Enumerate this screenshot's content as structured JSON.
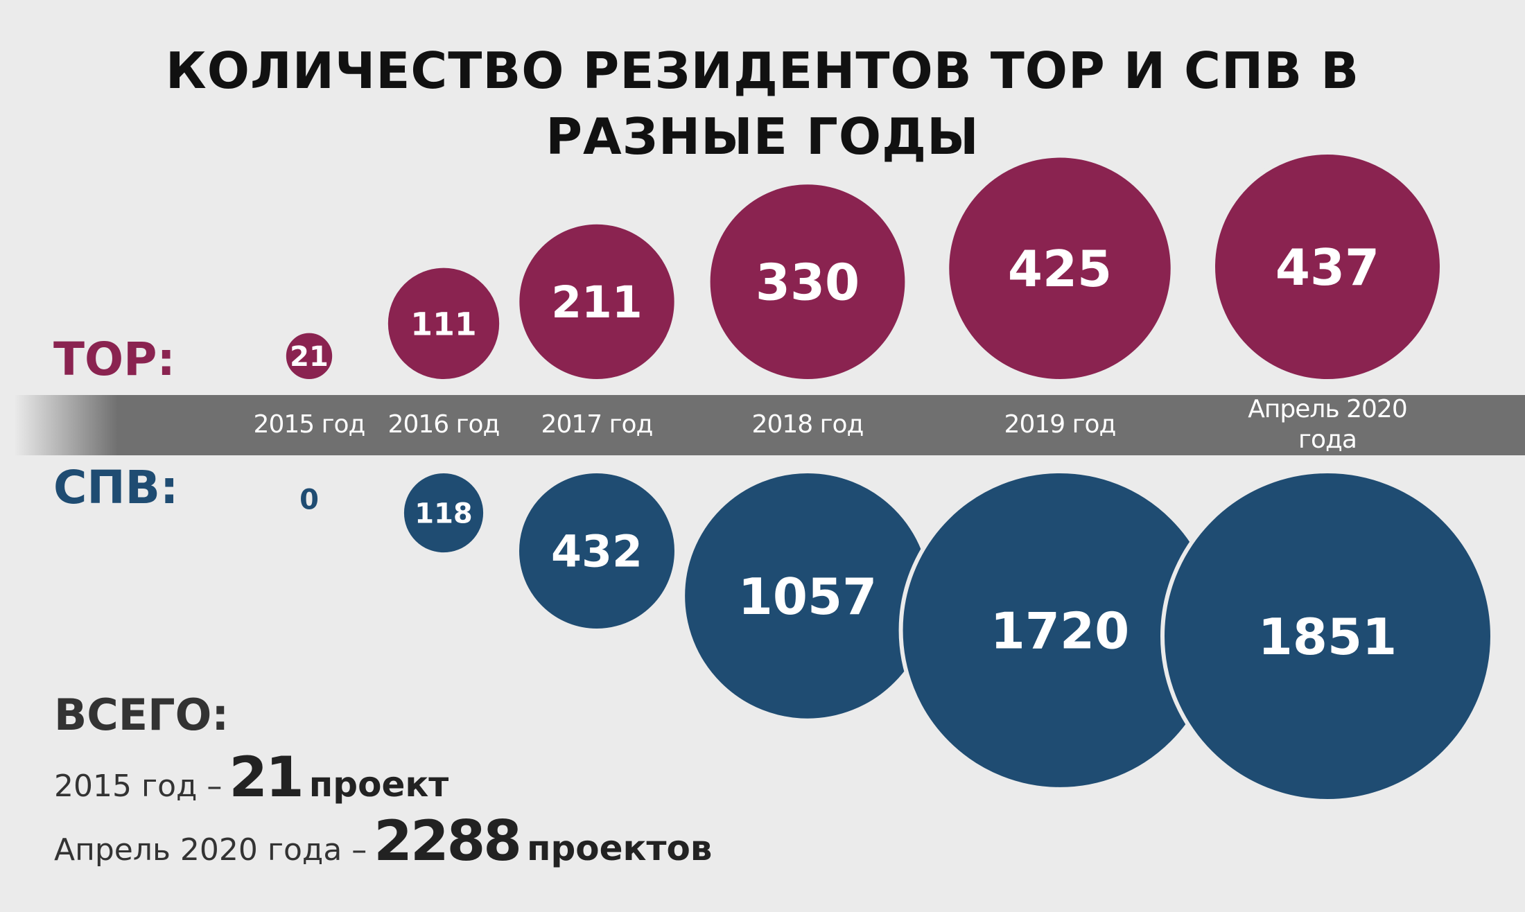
{
  "chart_data": {
    "type": "bubble",
    "title": "КОЛИЧЕСТВО РЕЗИДЕНТОВ ТОР И СПВ В РАЗНЫЕ ГОДЫ",
    "categories": [
      "2015 год",
      "2016 год",
      "2017 год",
      "2018 год",
      "2019 год",
      "Апрель 2020 года"
    ],
    "series": [
      {
        "name": "ТОР:",
        "color": "#8a2350",
        "values": [
          21,
          111,
          211,
          330,
          425,
          437
        ]
      },
      {
        "name": "СПВ:",
        "color": "#1f4c72",
        "values": [
          0,
          118,
          432,
          1057,
          1720,
          1851
        ]
      }
    ]
  },
  "totals": {
    "title": "ВСЕГО:",
    "lines": [
      {
        "text": "2015 год –",
        "value": 21,
        "unit": "проект"
      },
      {
        "text": "Апрель 2020 года –",
        "value": 2288,
        "unit": "проектов"
      }
    ]
  }
}
